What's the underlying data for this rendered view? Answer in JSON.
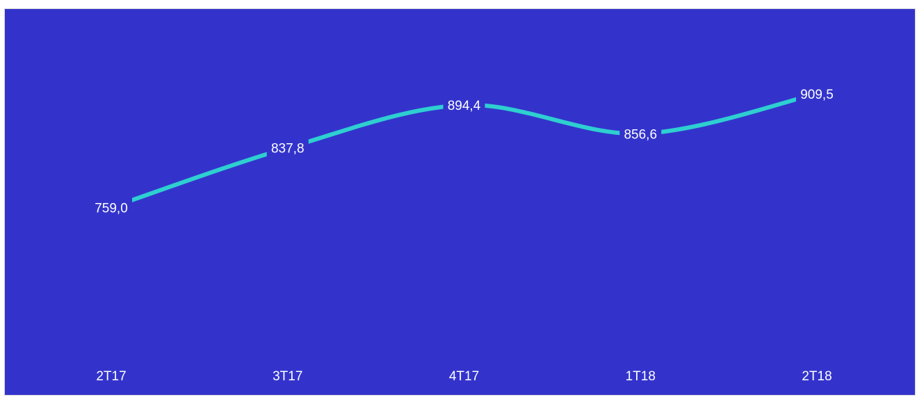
{
  "chart_data": {
    "type": "line",
    "categories": [
      "2T17",
      "3T17",
      "4T17",
      "1T18",
      "2T18"
    ],
    "series": [
      {
        "values": [
          759.0,
          837.8,
          894.4,
          856.6,
          909.5
        ],
        "labels": [
          "759,0",
          "837,8",
          "894,4",
          "856,6",
          "909,5"
        ]
      }
    ],
    "title": "",
    "xlabel": "",
    "ylabel": "",
    "ylim": [
      550,
      1000
    ],
    "grid": false,
    "legend": "none"
  },
  "colors": {
    "background": "#3333cc",
    "line": "#2ecfd0",
    "text": "#ffffff",
    "drop_lines": "#ffffff"
  }
}
